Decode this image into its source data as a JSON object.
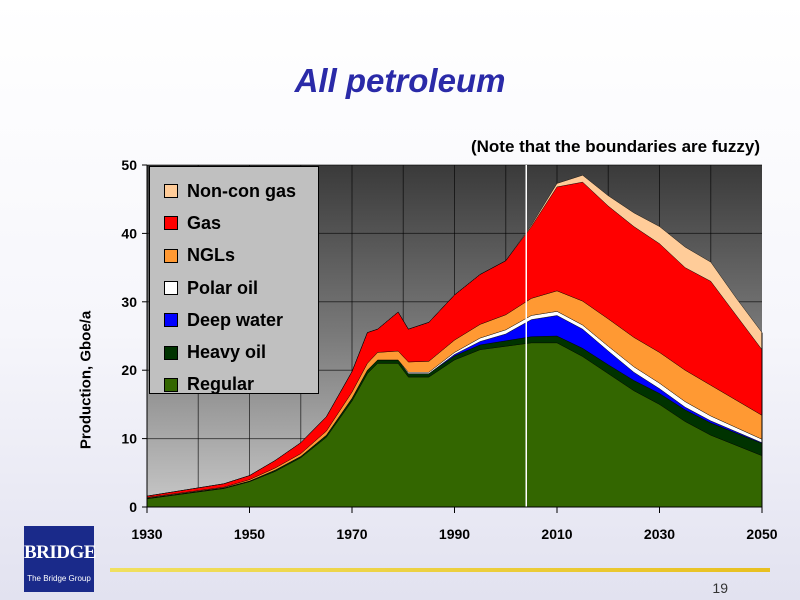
{
  "slide": {
    "title": "All petroleum",
    "note": "(Note that the boundaries are fuzzy)",
    "page_number": "19",
    "logo": {
      "word": "BRIDGE",
      "subtitle": "The Bridge Group"
    }
  },
  "chart_data": {
    "type": "area",
    "stacked": true,
    "title": "All petroleum",
    "xlabel": "",
    "ylabel": "Production, Gboe/a",
    "xlim": [
      1930,
      2050
    ],
    "ylim": [
      0,
      50
    ],
    "x_ticks": [
      1930,
      1950,
      1970,
      1990,
      2010,
      2030,
      2050
    ],
    "y_ticks": [
      0,
      10,
      20,
      30,
      40,
      50
    ],
    "grid": true,
    "legend_position": "top-left",
    "vertical_marker_x": 2004,
    "x": [
      1930,
      1935,
      1940,
      1945,
      1950,
      1955,
      1960,
      1965,
      1970,
      1973,
      1975,
      1979,
      1981,
      1985,
      1990,
      1995,
      2000,
      2005,
      2010,
      2015,
      2020,
      2025,
      2030,
      2035,
      2040,
      2045,
      2050
    ],
    "series": [
      {
        "name": "Regular",
        "color": "#336600",
        "values": [
          1.2,
          1.7,
          2.2,
          2.7,
          3.7,
          5.2,
          7.2,
          10.2,
          15.5,
          19.5,
          21,
          21,
          19,
          19,
          21.5,
          23,
          23.5,
          24,
          24,
          22,
          19.5,
          17,
          15,
          12.5,
          10.5,
          9,
          7.5
        ]
      },
      {
        "name": "Heavy oil",
        "color": "#003300",
        "values": [
          0.1,
          0.1,
          0.1,
          0.1,
          0.1,
          0.2,
          0.2,
          0.3,
          0.4,
          0.5,
          0.5,
          0.5,
          0.5,
          0.5,
          0.6,
          0.7,
          0.8,
          0.9,
          1.0,
          1.2,
          1.3,
          1.5,
          1.6,
          1.7,
          1.8,
          1.8,
          1.8
        ]
      },
      {
        "name": "Deep water",
        "color": "#0000ff",
        "values": [
          0,
          0,
          0,
          0,
          0,
          0,
          0,
          0,
          0,
          0,
          0,
          0,
          0,
          0,
          0.2,
          0.5,
          1.0,
          2.5,
          3.0,
          2.8,
          2.0,
          1.2,
          0.7,
          0.4,
          0.3,
          0.2,
          0.1
        ]
      },
      {
        "name": "Polar oil",
        "color": "#ffffff",
        "values": [
          0,
          0,
          0,
          0,
          0,
          0,
          0,
          0,
          0,
          0,
          0,
          0,
          0.2,
          0.2,
          0.3,
          0.5,
          0.6,
          0.6,
          0.6,
          0.6,
          0.7,
          0.8,
          0.8,
          0.8,
          0.7,
          0.6,
          0.5
        ]
      },
      {
        "name": "NGLs",
        "color": "#ff9933",
        "values": [
          0.1,
          0.1,
          0.1,
          0.1,
          0.2,
          0.3,
          0.4,
          0.6,
          0.9,
          1.0,
          1.1,
          1.3,
          1.5,
          1.6,
          1.8,
          2.0,
          2.2,
          2.5,
          3.0,
          3.5,
          4.0,
          4.3,
          4.5,
          4.6,
          4.5,
          4.0,
          3.5
        ]
      },
      {
        "name": "Gas",
        "color": "#ff0000",
        "values": [
          0.2,
          0.3,
          0.4,
          0.5,
          0.6,
          1.1,
          1.6,
          2.1,
          3.0,
          4.5,
          3.4,
          5.7,
          4.8,
          5.7,
          6.6,
          7.3,
          7.9,
          10.5,
          15.2,
          17.4,
          16.5,
          16.2,
          15.9,
          15.0,
          15.2,
          12.4,
          9.6
        ]
      },
      {
        "name": "Non-con gas",
        "color": "#ffcc99",
        "values": [
          0,
          0,
          0,
          0,
          0,
          0,
          0,
          0,
          0,
          0,
          0,
          0,
          0,
          0,
          0,
          0,
          0,
          0.2,
          0.5,
          1.0,
          1.5,
          2.0,
          2.5,
          3.0,
          2.8,
          2.5,
          2.5
        ]
      }
    ]
  }
}
